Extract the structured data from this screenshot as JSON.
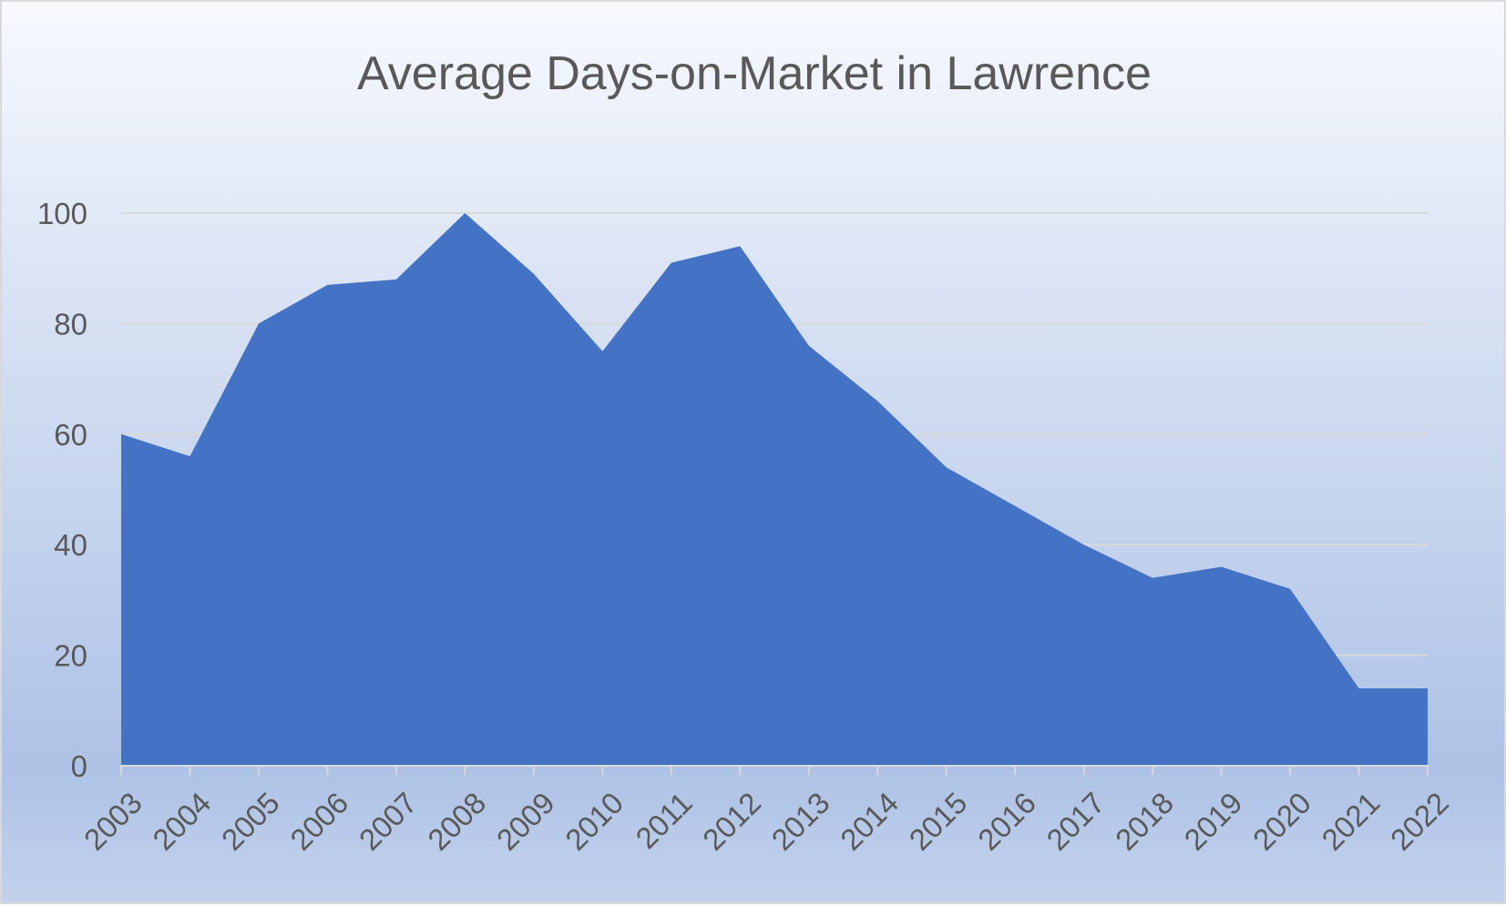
{
  "chart_data": {
    "type": "area",
    "title": "Average Days-on-Market in Lawrence",
    "xlabel": "",
    "ylabel": "",
    "categories": [
      "2003",
      "2004",
      "2005",
      "2006",
      "2007",
      "2008",
      "2009",
      "2010",
      "2011",
      "2012",
      "2013",
      "2014",
      "2015",
      "2016",
      "2017",
      "2018",
      "2019",
      "2020",
      "2021",
      "2022"
    ],
    "series": [
      {
        "values": [
          60,
          56,
          80,
          87,
          88,
          100,
          89,
          75,
          91,
          94,
          76,
          66,
          54,
          47,
          40,
          34,
          36,
          32,
          14,
          14
        ],
        "color": "#4472c4"
      }
    ],
    "ylim": [
      0,
      100
    ],
    "yticks": [
      0,
      20,
      40,
      60,
      80,
      100
    ],
    "grid": true,
    "legend": "none"
  }
}
